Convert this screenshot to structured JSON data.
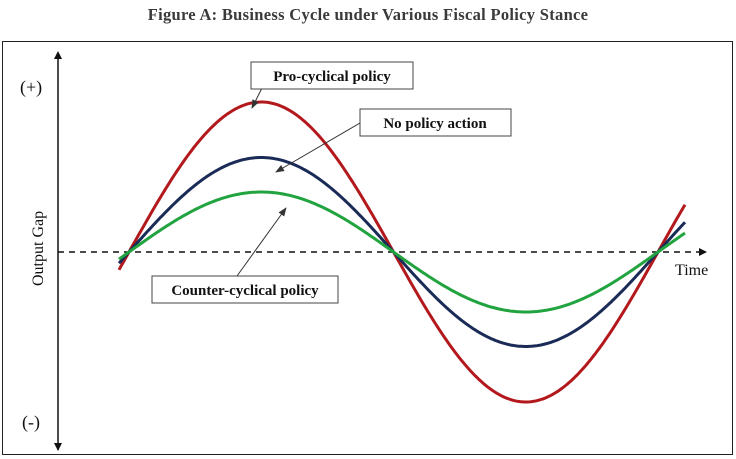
{
  "title": "Figure A: Business Cycle under Various Fiscal Policy Stance",
  "y_axis": {
    "label": "Output Gap",
    "top_marker": "(+)",
    "bottom_marker": "(-)"
  },
  "x_axis": {
    "label": "Time"
  },
  "curves": [
    {
      "name": "Pro-cyclical policy",
      "color": "#b3191c",
      "relative_amplitude": 1.0
    },
    {
      "name": "No policy action",
      "color": "#1b2b57",
      "relative_amplitude": 0.63
    },
    {
      "name": "Counter-cyclical policy",
      "color": "#21a33f",
      "relative_amplitude": 0.4
    }
  ],
  "callouts": {
    "pro": "Pro-cyclical policy",
    "none": "No policy action",
    "counter": "Counter-cyclical policy"
  }
}
